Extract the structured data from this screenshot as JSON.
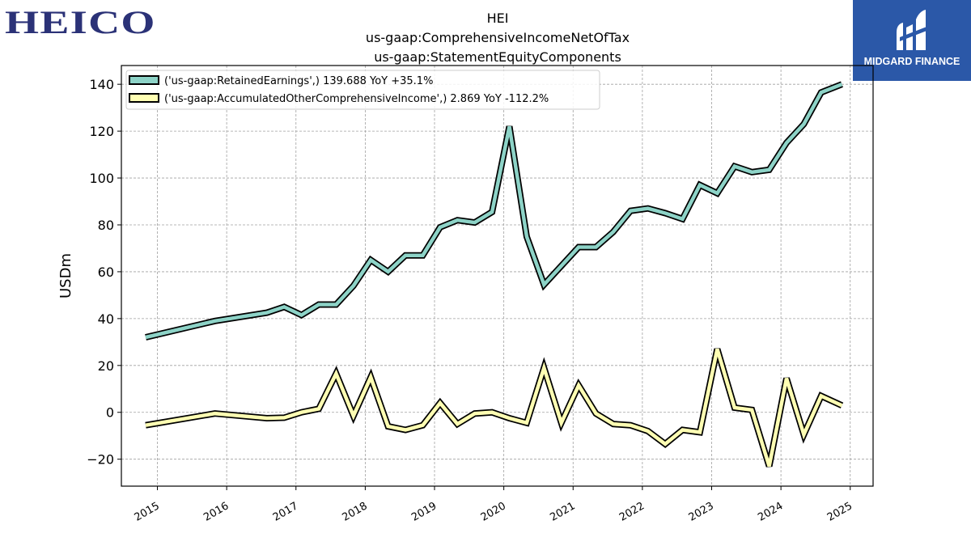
{
  "logos": {
    "left": "HEICO",
    "right": "MIDGARD FINANCE"
  },
  "chart_data": {
    "type": "line",
    "title": [
      "HEI",
      "us-gaap:ComprehensiveIncomeNetOfTax",
      "us-gaap:StatementEquityComponents"
    ],
    "ylabel": "USDm",
    "xlabel": "",
    "ylim": [
      -31.5,
      148
    ],
    "xlim": [
      2014.48,
      2025.33
    ],
    "yticks": [
      -20,
      0,
      20,
      40,
      60,
      80,
      100,
      120,
      140
    ],
    "ytick_labels": [
      "−20",
      "0",
      "20",
      "40",
      "60",
      "80",
      "100",
      "120",
      "140"
    ],
    "xticks": [
      2015,
      2016,
      2017,
      2018,
      2019,
      2020,
      2021,
      2022,
      2023,
      2024,
      2025
    ],
    "xtick_labels": [
      "2015",
      "2016",
      "2017",
      "2018",
      "2019",
      "2020",
      "2021",
      "2022",
      "2023",
      "2024",
      "2025"
    ],
    "grid": true,
    "legend_position": "top-left",
    "series": [
      {
        "name": "('us-gaap:RetainedEarnings',) 139.688 YoY +35.1%",
        "color": "#8dd3c7",
        "points": [
          [
            2014.83,
            32
          ],
          [
            2015.83,
            39
          ],
          [
            2016.58,
            42.5
          ],
          [
            2016.83,
            45
          ],
          [
            2017.08,
            41.5
          ],
          [
            2017.33,
            46
          ],
          [
            2017.58,
            46
          ],
          [
            2017.83,
            54
          ],
          [
            2018.08,
            65
          ],
          [
            2018.33,
            60
          ],
          [
            2018.58,
            67
          ],
          [
            2018.83,
            67
          ],
          [
            2019.08,
            79
          ],
          [
            2019.33,
            82
          ],
          [
            2019.58,
            81
          ],
          [
            2019.83,
            85.5
          ],
          [
            2020.08,
            122
          ],
          [
            2020.33,
            75
          ],
          [
            2020.58,
            54.5
          ],
          [
            2021.08,
            70.5
          ],
          [
            2021.33,
            70.5
          ],
          [
            2021.58,
            77
          ],
          [
            2021.83,
            86
          ],
          [
            2022.08,
            87
          ],
          [
            2022.33,
            85
          ],
          [
            2022.58,
            82.5
          ],
          [
            2022.83,
            97
          ],
          [
            2023.08,
            93.5
          ],
          [
            2023.33,
            105
          ],
          [
            2023.58,
            102.5
          ],
          [
            2023.83,
            103.5
          ],
          [
            2024.08,
            115
          ],
          [
            2024.33,
            123
          ],
          [
            2024.58,
            136.5
          ],
          [
            2024.88,
            140
          ]
        ]
      },
      {
        "name": "('us-gaap:AccumulatedOtherComprehensiveIncome',) 2.869 YoY -112.2%",
        "color": "#ffffb3",
        "points": [
          [
            2014.83,
            -5.5
          ],
          [
            2015.83,
            -0.5
          ],
          [
            2016.58,
            -2.5
          ],
          [
            2016.83,
            -2.3
          ],
          [
            2017.08,
            0
          ],
          [
            2017.33,
            1.5
          ],
          [
            2017.58,
            16.5
          ],
          [
            2017.83,
            -1.5
          ],
          [
            2018.08,
            15
          ],
          [
            2018.33,
            -6
          ],
          [
            2018.58,
            -7.5
          ],
          [
            2018.83,
            -5.5
          ],
          [
            2019.08,
            4
          ],
          [
            2019.33,
            -5
          ],
          [
            2019.58,
            -0.5
          ],
          [
            2019.83,
            0
          ],
          [
            2020.08,
            -2.5
          ],
          [
            2020.33,
            -4.5
          ],
          [
            2020.58,
            19
          ],
          [
            2020.83,
            -4.5
          ],
          [
            2021.08,
            11.5
          ],
          [
            2021.33,
            -0.5
          ],
          [
            2021.58,
            -5
          ],
          [
            2021.83,
            -5.5
          ],
          [
            2022.08,
            -8
          ],
          [
            2022.33,
            -13.5
          ],
          [
            2022.58,
            -7.5
          ],
          [
            2022.83,
            -8.5
          ],
          [
            2023.08,
            27
          ],
          [
            2023.33,
            2
          ],
          [
            2023.58,
            1
          ],
          [
            2023.83,
            -23
          ],
          [
            2024.08,
            14.5
          ],
          [
            2024.33,
            -9.5
          ],
          [
            2024.58,
            7
          ],
          [
            2024.88,
            2.9
          ]
        ]
      }
    ]
  }
}
